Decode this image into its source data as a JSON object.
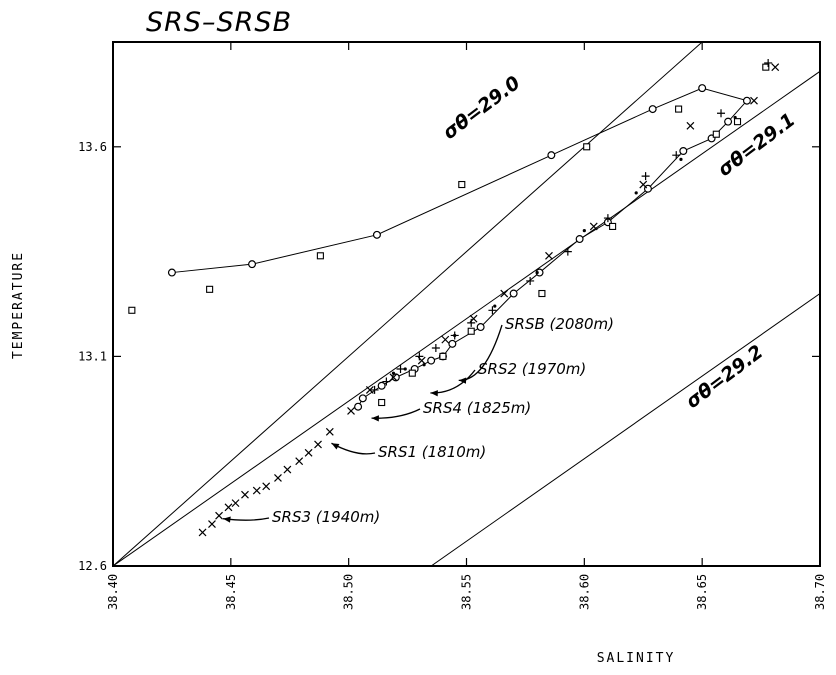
{
  "chart_data": {
    "type": "scatter",
    "title": "SRS–SRSB",
    "xlabel": "SALINITY",
    "ylabel": "TEMPERATURE",
    "xlim": [
      38.4,
      38.7
    ],
    "ylim": [
      12.6,
      13.85
    ],
    "x_ticks": [
      "38.40",
      "38.45",
      "38.50",
      "38.55",
      "38.60",
      "38.65",
      "38.70"
    ],
    "y_ticks": [
      "12.6",
      "13.1",
      "13.6"
    ],
    "grid": false,
    "isopycnals": [
      {
        "label": "σθ=29.0",
        "points": [
          [
            38.4,
            12.6
          ],
          [
            38.65,
            13.85
          ]
        ]
      },
      {
        "label": "σθ=29.1",
        "points": [
          [
            38.4,
            12.6
          ],
          [
            38.7,
            13.78
          ]
        ]
      },
      {
        "label": "σθ=29.2",
        "points": [
          [
            38.535,
            12.6
          ],
          [
            38.7,
            13.25
          ]
        ]
      }
    ],
    "annotations": [
      {
        "text": "SRSB (2080m)",
        "point": [
          38.545,
          13.05
        ]
      },
      {
        "text": "SRS2 (1970m)",
        "point": [
          38.533,
          13.02
        ]
      },
      {
        "text": "SRS4 (1825m)",
        "point": [
          38.508,
          12.96
        ]
      },
      {
        "text": "SRS1 (1810m)",
        "point": [
          38.491,
          12.9
        ]
      },
      {
        "text": "SRS3 (1940m)",
        "point": [
          38.445,
          12.72
        ]
      }
    ],
    "series": [
      {
        "marker": "circle",
        "line": true,
        "points": [
          [
            38.425,
            13.3
          ],
          [
            38.459,
            13.32
          ],
          [
            38.512,
            13.39
          ],
          [
            38.586,
            13.58
          ],
          [
            38.629,
            13.69
          ],
          [
            38.65,
            13.74
          ],
          [
            38.669,
            13.71
          ],
          [
            38.661,
            13.66
          ],
          [
            38.654,
            13.62
          ],
          [
            38.642,
            13.59
          ],
          [
            38.627,
            13.5
          ],
          [
            38.61,
            13.42
          ],
          [
            38.598,
            13.38
          ],
          [
            38.581,
            13.3
          ],
          [
            38.57,
            13.25
          ],
          [
            38.556,
            13.17
          ],
          [
            38.544,
            13.13
          ],
          [
            38.54,
            13.1
          ],
          [
            38.535,
            13.09
          ],
          [
            38.528,
            13.07
          ],
          [
            38.52,
            13.05
          ],
          [
            38.514,
            13.03
          ],
          [
            38.506,
            13.0
          ],
          [
            38.504,
            12.98
          ]
        ]
      },
      {
        "marker": "square",
        "line": false,
        "points": [
          [
            38.408,
            13.21
          ],
          [
            38.441,
            13.26
          ],
          [
            38.488,
            13.34
          ],
          [
            38.548,
            13.51
          ],
          [
            38.601,
            13.6
          ],
          [
            38.64,
            13.69
          ],
          [
            38.656,
            13.63
          ],
          [
            38.665,
            13.66
          ],
          [
            38.677,
            13.79
          ],
          [
            38.612,
            13.41
          ],
          [
            38.582,
            13.25
          ],
          [
            38.552,
            13.16
          ],
          [
            38.54,
            13.1
          ],
          [
            38.527,
            13.06
          ],
          [
            38.514,
            12.99
          ]
        ]
      },
      {
        "marker": "plus",
        "line": false,
        "points": [
          [
            38.678,
            13.8
          ],
          [
            38.658,
            13.68
          ],
          [
            38.639,
            13.58
          ],
          [
            38.626,
            13.53
          ],
          [
            38.61,
            13.43
          ],
          [
            38.593,
            13.35
          ],
          [
            38.577,
            13.28
          ],
          [
            38.561,
            13.21
          ],
          [
            38.552,
            13.18
          ],
          [
            38.545,
            13.15
          ],
          [
            38.537,
            13.12
          ],
          [
            38.53,
            13.1
          ],
          [
            38.522,
            13.07
          ],
          [
            38.516,
            13.04
          ],
          [
            38.511,
            13.02
          ]
        ]
      },
      {
        "marker": "cross",
        "line": false,
        "points": [
          [
            38.681,
            13.79
          ],
          [
            38.672,
            13.71
          ],
          [
            38.645,
            13.65
          ],
          [
            38.625,
            13.51
          ],
          [
            38.604,
            13.41
          ],
          [
            38.585,
            13.34
          ],
          [
            38.566,
            13.25
          ],
          [
            38.553,
            13.19
          ],
          [
            38.541,
            13.14
          ],
          [
            38.531,
            13.09
          ],
          [
            38.519,
            13.05
          ],
          [
            38.509,
            13.02
          ],
          [
            38.501,
            12.97
          ],
          [
            38.492,
            12.92
          ],
          [
            38.487,
            12.89
          ],
          [
            38.483,
            12.87
          ],
          [
            38.479,
            12.85
          ],
          [
            38.474,
            12.83
          ],
          [
            38.47,
            12.81
          ],
          [
            38.465,
            12.79
          ],
          [
            38.461,
            12.78
          ],
          [
            38.456,
            12.77
          ],
          [
            38.452,
            12.75
          ],
          [
            38.449,
            12.74
          ],
          [
            38.445,
            12.72
          ],
          [
            38.442,
            12.7
          ],
          [
            38.438,
            12.68
          ]
        ]
      },
      {
        "marker": "dot",
        "line": false,
        "points": [
          [
            38.664,
            13.67
          ],
          [
            38.641,
            13.57
          ],
          [
            38.622,
            13.49
          ],
          [
            38.6,
            13.4
          ],
          [
            38.58,
            13.3
          ],
          [
            38.562,
            13.22
          ],
          [
            38.545,
            13.15
          ],
          [
            38.532,
            13.08
          ],
          [
            38.524,
            13.07
          ],
          [
            38.519,
            13.06
          ]
        ]
      }
    ]
  }
}
